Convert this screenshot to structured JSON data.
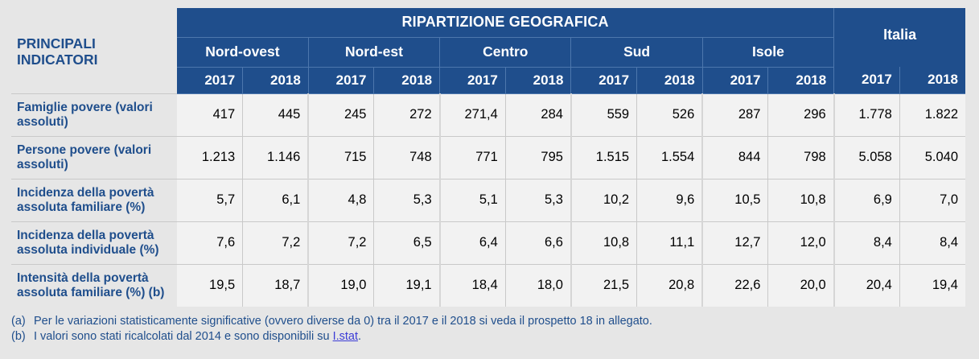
{
  "header": {
    "indicator_title_line1": "PRINCIPALI",
    "indicator_title_line2": "INDICATORI",
    "group_title": "RIPARTIZIONE GEOGRAFICA",
    "italia": "Italia",
    "regions": [
      "Nord-ovest",
      "Nord-est",
      "Centro",
      "Sud",
      "Isole"
    ],
    "years": [
      "2017",
      "2018",
      "2017",
      "2018",
      "2017",
      "2018",
      "2017",
      "2018",
      "2017",
      "2018",
      "2017",
      "2018"
    ]
  },
  "rows": [
    {
      "label_line1": "Famiglie povere (valori",
      "label_line2": "assoluti)",
      "values": [
        "417",
        "445",
        "245",
        "272",
        "271,4",
        "284",
        "559",
        "526",
        "287",
        "296",
        "1.778",
        "1.822"
      ]
    },
    {
      "label_line1": "Persone povere (valori",
      "label_line2": "assoluti)",
      "values": [
        "1.213",
        "1.146",
        "715",
        "748",
        "771",
        "795",
        "1.515",
        "1.554",
        "844",
        "798",
        "5.058",
        "5.040"
      ]
    },
    {
      "label_line1": "Incidenza della povertà",
      "label_line2": "assoluta familiare (%)",
      "values": [
        "5,7",
        "6,1",
        "4,8",
        "5,3",
        "5,1",
        "5,3",
        "10,2",
        "9,6",
        "10,5",
        "10,8",
        "6,9",
        "7,0"
      ]
    },
    {
      "label_line1": "Incidenza della povertà",
      "label_line2": "assoluta individuale (%)",
      "values": [
        "7,6",
        "7,2",
        "7,2",
        "6,5",
        "6,4",
        "6,6",
        "10,8",
        "11,1",
        "12,7",
        "12,0",
        "8,4",
        "8,4"
      ]
    },
    {
      "label_line1": "Intensità della povertà",
      "label_line2": "assoluta familiare (%) (b)",
      "values": [
        "19,5",
        "18,7",
        "19,0",
        "19,1",
        "18,4",
        "18,0",
        "21,5",
        "20,8",
        "22,6",
        "20,0",
        "20,4",
        "19,4"
      ]
    }
  ],
  "notes": [
    {
      "marker": "(a)",
      "text": "Per le variazioni statisticamente significative (ovvero diverse da 0) tra il 2017 e il 2018 si veda il prospetto 18 in allegato."
    },
    {
      "marker": "(b)",
      "text": "I valori sono stati ricalcolati dal 2014 e sono disponibili su",
      "link_text": "I.stat",
      "suffix": "."
    }
  ],
  "colors": {
    "header_blue": "#1f4e8c",
    "label_blue": "#1f4e8c",
    "page_background": "#e6e6e6",
    "cell_background": "#f2f2f2",
    "link": "#3b3bd6"
  }
}
